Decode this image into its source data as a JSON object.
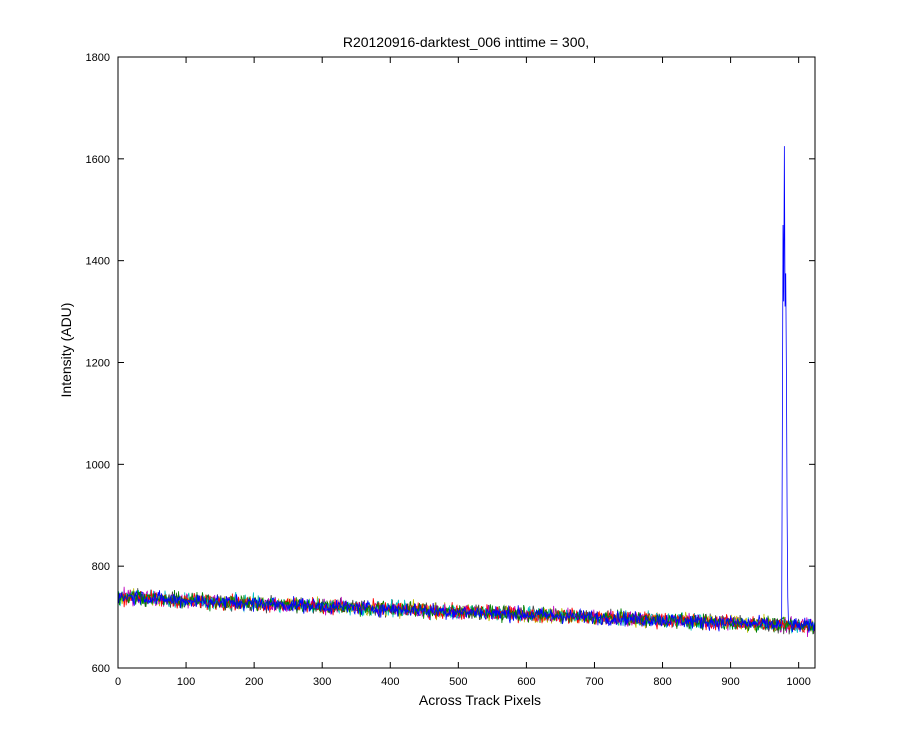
{
  "chart_data": {
    "type": "line",
    "title": "R20120916-darktest_006 inttime = 300,",
    "xlabel": "Across Track Pixels",
    "ylabel": "Intensity (ADU)",
    "xlim": [
      0,
      1024
    ],
    "ylim": [
      600,
      1800
    ],
    "xticks": [
      "0",
      "100",
      "200",
      "300",
      "400",
      "500",
      "600",
      "700",
      "800",
      "900",
      "1000"
    ],
    "yticks": [
      "600",
      "800",
      "1000",
      "1200",
      "1400",
      "1600",
      "1800"
    ],
    "grid": false,
    "legend": "none",
    "series_count": 7,
    "series_colors": [
      "#0000ff",
      "#008000",
      "#ff0000",
      "#00bfbf",
      "#bf00bf",
      "#bfbf00",
      "#404040"
    ],
    "trend": {
      "x": [
        0,
        1024
      ],
      "y": [
        738,
        682
      ]
    },
    "noise_amplitude": 13,
    "spike": {
      "series": 0,
      "points": [
        {
          "x": 975,
          "y": 700
        },
        {
          "x": 976,
          "y": 1050
        },
        {
          "x": 977,
          "y": 1470
        },
        {
          "x": 978,
          "y": 1320
        },
        {
          "x": 979,
          "y": 1625
        },
        {
          "x": 980,
          "y": 1310
        },
        {
          "x": 981,
          "y": 1375
        },
        {
          "x": 982,
          "y": 1180
        },
        {
          "x": 983,
          "y": 910
        },
        {
          "x": 984,
          "y": 740
        },
        {
          "x": 985,
          "y": 690
        }
      ]
    }
  }
}
